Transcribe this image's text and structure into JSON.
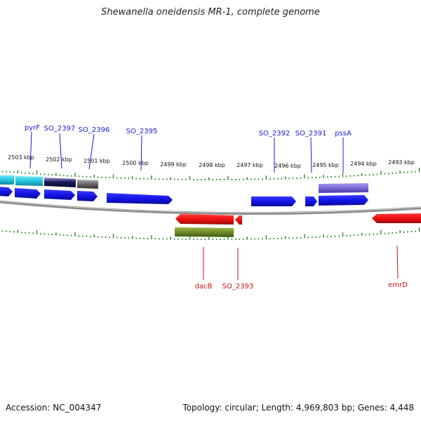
{
  "title": "Shewanella oneidensis MR-1, complete genome",
  "footer": {
    "accession": "Accession: NC_004347",
    "topology": "Topology: circular; Length: 4,969,803 bp; Genes: 4,448"
  },
  "colors": {
    "gene_blue": "#1a1aee",
    "gene_red": "#ee1111",
    "cyan": "#22c4e0",
    "dark_navy": "#1a1a5a",
    "gray": "#666666",
    "purple": "#7a6ad8",
    "olive": "#6f8a2a",
    "tick_green": "#2a8a2a",
    "backbone": "#888888"
  },
  "scale": {
    "labels": [
      "2503 kbp",
      "2502 kbp",
      "2501 kbp",
      "2500 kbp",
      "2499 kbp",
      "2498 kbp",
      "2497 kbp",
      "2496 kbp",
      "2495 kbp",
      "2494 kbp",
      "2493 kbp"
    ]
  },
  "top_labels": [
    "pyrF",
    "SO_2397",
    "SO_2396",
    "SO_2395",
    "SO_2392",
    "SO_2391",
    "pssA"
  ],
  "bottom_labels": [
    "dacB",
    "SO_2393",
    "emrD"
  ],
  "features": [
    "forward-genes",
    "reverse-genes",
    "cyan-feature",
    "navy-feature",
    "gray-feature",
    "purple-feature",
    "olive-feature"
  ]
}
